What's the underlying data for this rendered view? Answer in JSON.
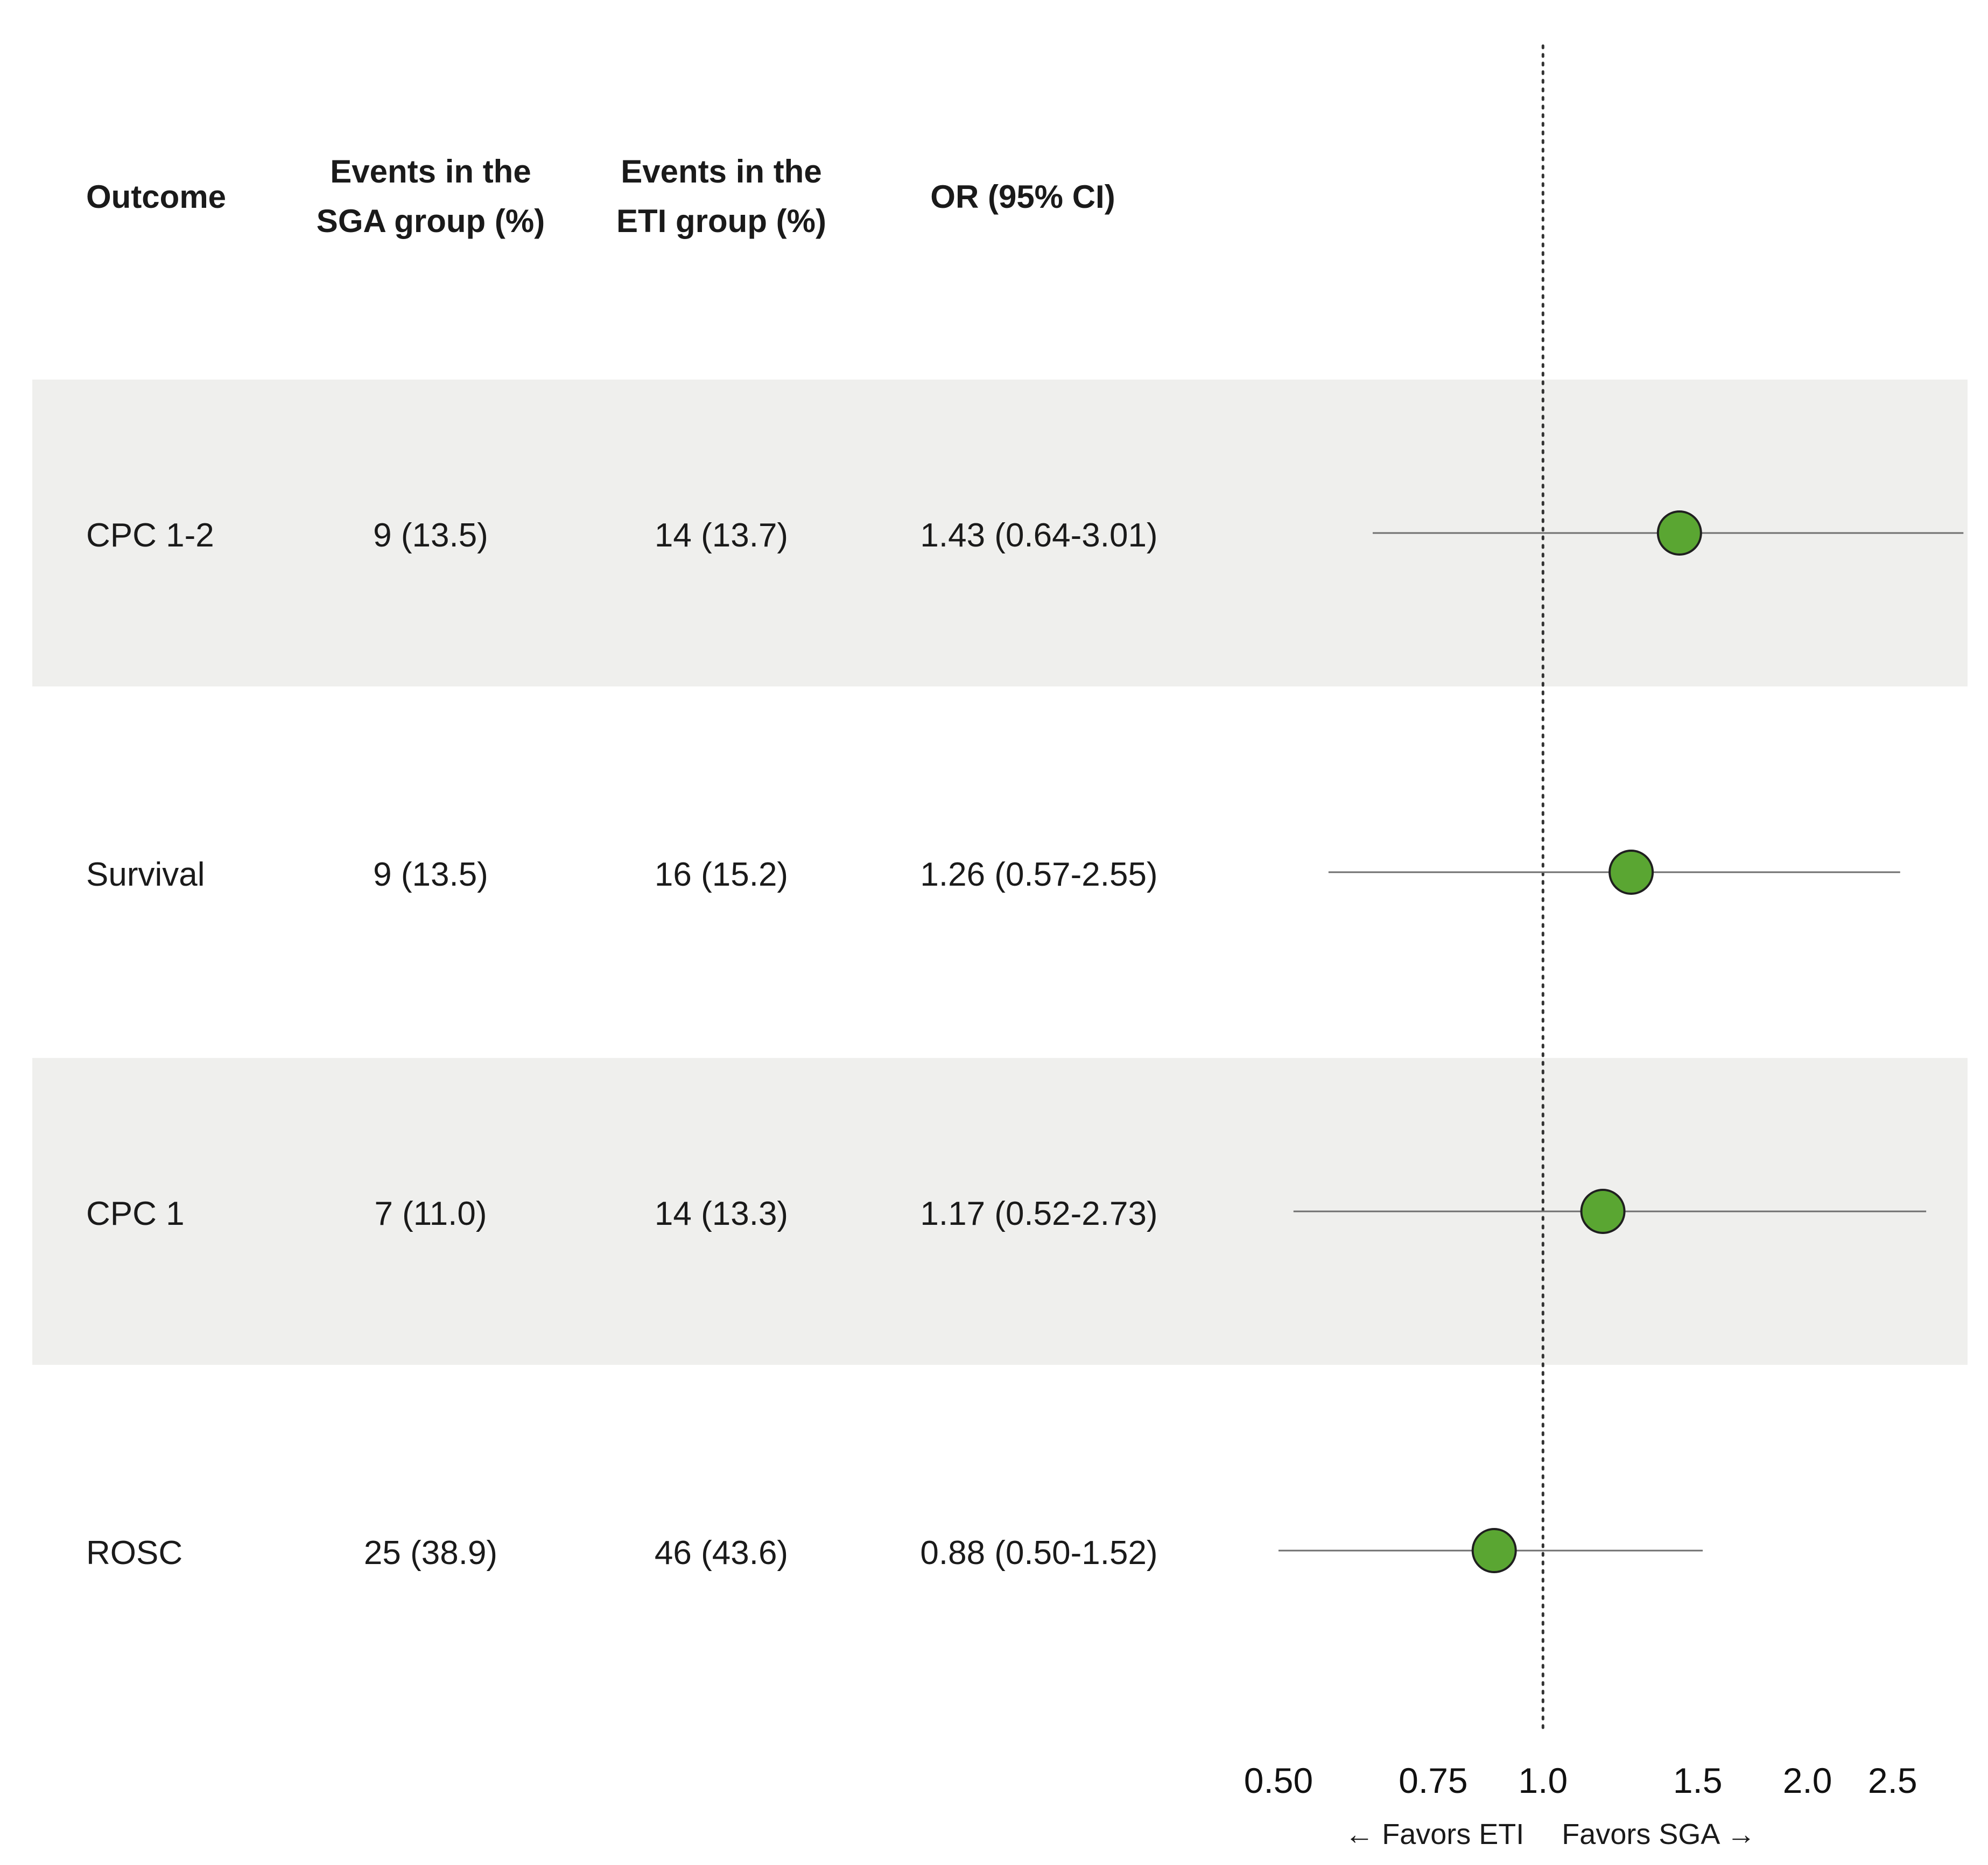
{
  "table": {
    "headers": [
      {
        "line1": "Outcome",
        "line2": ""
      },
      {
        "line1": "Events in the",
        "line2": "SGA group (%)"
      },
      {
        "line1": "Events in the",
        "line2": "ETI group (%)"
      },
      {
        "line1": "OR (95% CI)",
        "line2": ""
      }
    ],
    "rows": [
      {
        "outcome": "CPC 1-2",
        "sga": "9 (13.5)",
        "eti": "14 (13.7)",
        "or_ci": "1.43 (0.64-3.01)",
        "shaded": true
      },
      {
        "outcome": "Survival",
        "sga": "9 (13.5)",
        "eti": "16 (15.2)",
        "or_ci": "1.26 (0.57-2.55)",
        "shaded": false
      },
      {
        "outcome": "CPC 1",
        "sga": "7 (11.0)",
        "eti": "14 (13.3)",
        "or_ci": "1.17 (0.52-2.73)",
        "shaded": true
      },
      {
        "outcome": "ROSC",
        "sga": "25 (38.9)",
        "eti": "46 (43.6)",
        "or_ci": "0.88 (0.50-1.52)",
        "shaded": false
      }
    ]
  },
  "chart_data": {
    "type": "scatter",
    "subtype": "forest-plot",
    "x_scale": "log",
    "xlim": [
      0.5,
      3.0
    ],
    "reference_line": 1.0,
    "x_ticks": [
      {
        "value": 0.5,
        "label": "0.50"
      },
      {
        "value": 0.75,
        "label": "0.75"
      },
      {
        "value": 1.0,
        "label": "1.0"
      },
      {
        "value": 1.5,
        "label": "1.5"
      },
      {
        "value": 2.0,
        "label": "2.0"
      },
      {
        "value": 2.5,
        "label": "2.5"
      }
    ],
    "categories": [
      "CPC 1-2",
      "Survival",
      "CPC 1",
      "ROSC"
    ],
    "points": [
      {
        "label": "CPC 1-2",
        "or": 1.43,
        "lower": 0.64,
        "upper": 3.01
      },
      {
        "label": "Survival",
        "or": 1.26,
        "lower": 0.57,
        "upper": 2.55
      },
      {
        "label": "CPC 1",
        "or": 1.17,
        "lower": 0.52,
        "upper": 2.73
      },
      {
        "label": "ROSC",
        "or": 0.88,
        "lower": 0.5,
        "upper": 1.52
      }
    ],
    "favors_left": "← Favors ETI",
    "favors_right": "Favors SGA →",
    "marker_color": "#5aa632",
    "line_color": "#6f6f6f",
    "band_color": "#efefed"
  }
}
